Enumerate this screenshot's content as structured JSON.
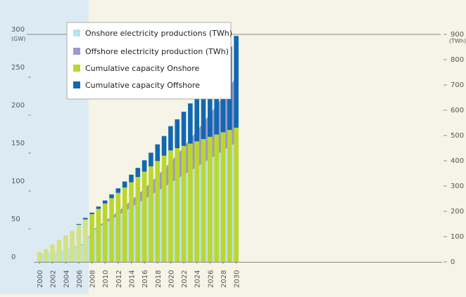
{
  "chart_data": {
    "type": "bar",
    "title": "",
    "x": [
      2000,
      2001,
      2002,
      2003,
      2004,
      2005,
      2006,
      2007,
      2008,
      2009,
      2010,
      2011,
      2012,
      2013,
      2014,
      2015,
      2016,
      2017,
      2018,
      2019,
      2020,
      2021,
      2022,
      2023,
      2024,
      2025,
      2026,
      2027,
      2028,
      2029,
      2030
    ],
    "x_tick_labels": [
      "2000",
      "2002",
      "2004",
      "2006",
      "2008",
      "2010",
      "2012",
      "2014",
      "2016",
      "2018",
      "2020",
      "2022",
      "2024",
      "2026",
      "2028",
      "2030"
    ],
    "historical_range": [
      2000,
      2007
    ],
    "left_axis": {
      "unit": "(GW)",
      "ylim": [
        0,
        300
      ],
      "ticks": [
        "0",
        "50",
        "100",
        "150",
        "200",
        "250",
        "300"
      ]
    },
    "right_axis": {
      "unit": "(TWh)",
      "ylim": [
        0,
        900
      ],
      "ticks": [
        "0",
        "100",
        "200",
        "300",
        "400",
        "500",
        "600",
        "700",
        "800",
        "900"
      ]
    },
    "series": [
      {
        "name": "Onshore electricity productions (TWh)",
        "type": "area",
        "axis": "right",
        "color": "#b8e2ef",
        "values": [
          30,
          33,
          37,
          42,
          48,
          55,
          63,
          72,
          120,
          136,
          152,
          168,
          184,
          200,
          216,
          232,
          248,
          264,
          280,
          296,
          312,
          328,
          344,
          360,
          376,
          392,
          408,
          424,
          440,
          456,
          472
        ]
      },
      {
        "name": "Offshore electricity production (TWh)",
        "type": "area",
        "axis": "right",
        "color": "#9e98cc",
        "values": [
          0,
          0,
          0,
          0,
          0,
          1,
          2,
          3,
          4,
          6,
          9,
          12,
          16,
          21,
          27,
          34,
          42,
          51,
          61,
          72,
          84,
          97,
          111,
          126,
          142,
          159,
          177,
          196,
          216,
          237,
          260
        ]
      },
      {
        "name": "Cumulative capacity Onshore",
        "type": "bar",
        "axis": "left",
        "color": "#bcd630",
        "historical_color": "#d2e285",
        "values": [
          13,
          17,
          23,
          29,
          35,
          41,
          49,
          56,
          63,
          70,
          77,
          84,
          91,
          98,
          105,
          112,
          119,
          126,
          133,
          140,
          147,
          150,
          153,
          156,
          159,
          162,
          165,
          168,
          171,
          174,
          177
        ]
      },
      {
        "name": "Cumulative capacity Offshore",
        "type": "bar",
        "axis": "left",
        "color": "#1168b0",
        "values": [
          0,
          0,
          0,
          0,
          0,
          0,
          1,
          2,
          2,
          3,
          4,
          5,
          6,
          8,
          10,
          12,
          15,
          18,
          22,
          26,
          32,
          38,
          45,
          53,
          61,
          69,
          78,
          88,
          99,
          110,
          121
        ]
      }
    ],
    "grid": false,
    "legend_position": "top-left"
  }
}
